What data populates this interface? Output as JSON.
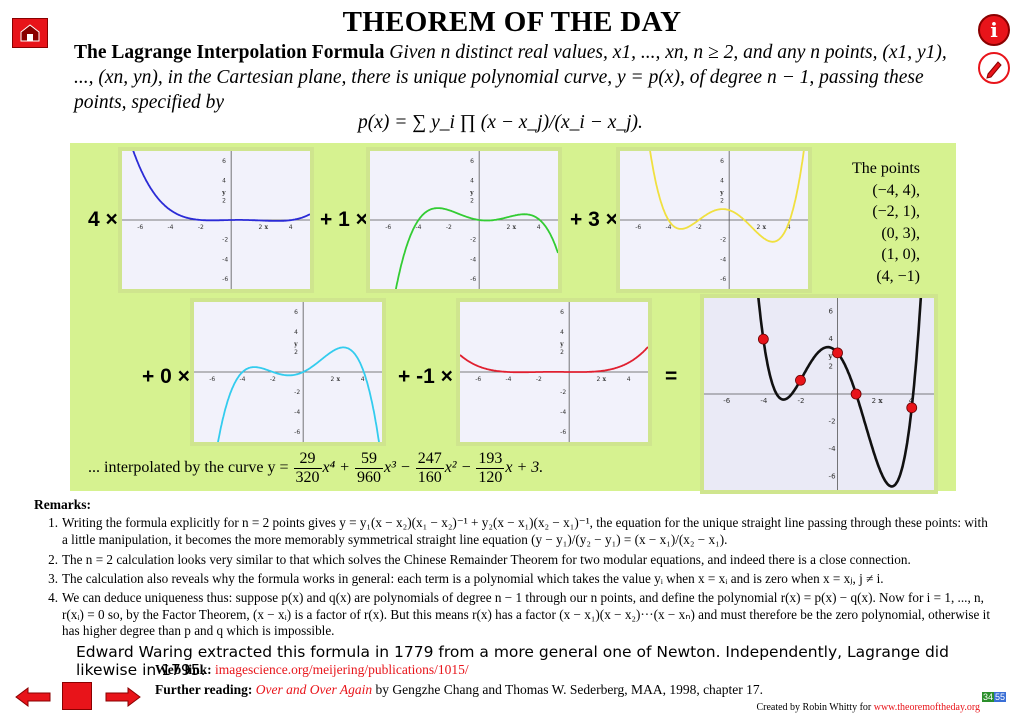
{
  "header": {
    "title": "THEOREM OF THE DAY",
    "theorem_name": "The Lagrange Interpolation Formula",
    "statement": "Given n distinct real values, x1, ..., xn, n ≥ 2, and any n points, (x1, y1), ..., (xn, yn), in the Cartesian plane, there is unique polynomial curve, y = p(x), of degree n − 1, passing these points, specified by",
    "formula": "p(x) = ∑ y_i ∏ (x − x_j)/(x_i − x_j)."
  },
  "nav": {
    "home_icon": "home-icon",
    "info_icon": "info-icon",
    "info_label": "i",
    "pencil_icon": "pencil-icon",
    "prev_icon": "left-arrow-icon",
    "next_icon": "right-arrow-icon"
  },
  "graphs": {
    "coefficients": [
      "4 ×",
      "+ 1 ×",
      "+ 3 ×",
      "+ 0 ×",
      "+ -1 ×"
    ],
    "equals": "=",
    "tick_labels_x": [
      "-6",
      "-4",
      "-2",
      "2",
      "4"
    ],
    "tick_labels_y": [
      "6",
      "4",
      "2",
      "-2",
      "-4",
      "-6"
    ],
    "axis_x": "x",
    "axis_y": "y",
    "colors": [
      "#2b2bd6",
      "#33cc33",
      "#f0e040",
      "#33ccee",
      "#e02030",
      "#111111"
    ],
    "point_color": "#e8141a"
  },
  "points": {
    "heading": "The points",
    "list": [
      "(−4, 4),",
      "(−2, 1),",
      "(0, 3),",
      "(1, 0),",
      "(4, −1)"
    ]
  },
  "interpolated": {
    "prefix": "... interpolated by the curve y =",
    "terms": [
      {
        "num": "29",
        "den": "320",
        "pow": "x⁴ +"
      },
      {
        "num": "59",
        "den": "960",
        "pow": "x³ −"
      },
      {
        "num": "247",
        "den": "160",
        "pow": "x² −"
      },
      {
        "num": "193",
        "den": "120",
        "pow": "x + 3."
      }
    ]
  },
  "remarks": {
    "heading": "Remarks:",
    "items": [
      {
        "n": "1.",
        "text": "Writing the formula explicitly for n = 2 points gives y = y₁(x − x₂)(x₁ − x₂)⁻¹ + y₂(x − x₁)(x₂ − x₁)⁻¹, the equation for the unique straight line passing through these points: with a little manipulation, it becomes the more memorably symmetrical straight line equation (y − y₁)/(y₂ − y₁) = (x − x₁)/(x₂ − x₁)."
      },
      {
        "n": "2.",
        "text": "The n = 2 calculation looks very similar to that which solves the Chinese Remainder Theorem for two modular equations, and indeed there is a close connection."
      },
      {
        "n": "3.",
        "text": "The calculation also reveals why the formula works in general: each term is a polynomial which takes the value yᵢ when x = xᵢ and is zero when x = xⱼ, j ≠ i."
      },
      {
        "n": "4.",
        "text": "We can deduce uniqueness thus: suppose p(x) and q(x) are polynomials of degree n − 1 through our n points, and define the polynomial r(x) = p(x) − q(x). Now for i = 1, ..., n, r(xᵢ) = 0 so, by the Factor Theorem, (x − xᵢ) is a factor of r(x). But this means r(x) has a factor (x − x₁)(x − x₂)···(x − xₙ) and must therefore be the zero polynomial, otherwise it has higher degree than p and q which is impossible."
      }
    ]
  },
  "history": "Edward Waring extracted this formula in 1779 from a more general one of Newton. Independently, Lagrange did likewise in 1795.",
  "web_link": {
    "label": "Web link:",
    "url": "imagescience.org/meijering/publications/1015/"
  },
  "further_reading": {
    "label": "Further reading:",
    "title": "Over and Over Again",
    "rest": "by Gengzhe Chang and Thomas W. Sederberg, MAA, 1998, chapter 17."
  },
  "credit": {
    "text": "Created by Robin Whitty for",
    "link": "www.theoremoftheday.org"
  },
  "badge": {
    "number": "34",
    "suffix": "55"
  }
}
